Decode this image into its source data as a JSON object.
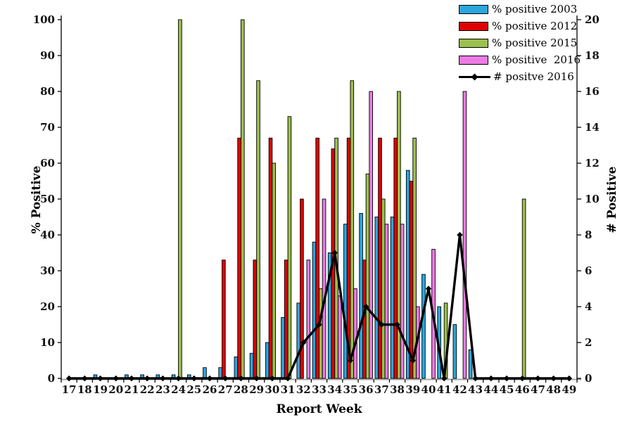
{
  "chart_data": {
    "type": "bar+line",
    "grid": false,
    "legend_position": "top-right",
    "x_axis": {
      "label": "Report Week",
      "categories": [
        17,
        18,
        19,
        20,
        21,
        22,
        23,
        24,
        25,
        26,
        27,
        28,
        29,
        30,
        31,
        32,
        33,
        34,
        35,
        36,
        37,
        38,
        39,
        40,
        41,
        42,
        43,
        44,
        45,
        46,
        47,
        48,
        49
      ]
    },
    "y_left_axis": {
      "label": "% Positive",
      "min": 0,
      "max": 100,
      "step": 10
    },
    "y_right_axis": {
      "label": "# Positive",
      "min": 0,
      "max": 20,
      "step": 2
    },
    "series": [
      {
        "name": "% positive 2003",
        "type": "bar",
        "axis": "left",
        "color": "#2BA6DE",
        "values": [
          0,
          0,
          1,
          0,
          1,
          1,
          1,
          1,
          1,
          3,
          3,
          6,
          7,
          10,
          17,
          21,
          38,
          35,
          43,
          46,
          45,
          45,
          58,
          29,
          20,
          15,
          8,
          0,
          0,
          0,
          0,
          0,
          0
        ]
      },
      {
        "name": "% positive 2012",
        "type": "bar",
        "axis": "left",
        "color": "#E00000",
        "values": [
          0,
          0,
          0,
          0,
          0,
          0,
          0,
          0,
          0,
          0,
          33,
          67,
          33,
          67,
          33,
          50,
          67,
          64,
          67,
          33,
          67,
          67,
          55,
          0,
          0,
          0,
          0,
          0,
          0,
          0,
          0,
          0,
          0
        ]
      },
      {
        "name": "% positive 2015",
        "type": "bar",
        "axis": "left",
        "color": "#9CC04D",
        "values": [
          0,
          0,
          0,
          0,
          0,
          0,
          0,
          100,
          0,
          0,
          0,
          100,
          83,
          60,
          73,
          0,
          25,
          67,
          83,
          57,
          50,
          80,
          67,
          0,
          21,
          0,
          0,
          0,
          0,
          50,
          0,
          0,
          0
        ]
      },
      {
        "name": "% positive  2016",
        "type": "bar",
        "axis": "left",
        "color": "#EE7BE4",
        "values": [
          0,
          0,
          0,
          0,
          0,
          0,
          0,
          0,
          0,
          0,
          0,
          0,
          0,
          0,
          0,
          33,
          50,
          23,
          25,
          80,
          43,
          43,
          20,
          36,
          0,
          80,
          0,
          0,
          0,
          0,
          0,
          0,
          0
        ]
      },
      {
        "name": "# positve 2016",
        "type": "line",
        "axis": "right",
        "color": "#000000",
        "values": [
          0,
          0,
          0,
          0,
          0,
          0,
          0,
          0,
          0,
          0,
          0,
          0,
          0,
          0,
          0,
          2,
          3,
          7,
          1,
          4,
          3,
          3,
          1,
          5,
          0,
          8,
          0,
          0,
          0,
          0,
          0,
          0,
          0
        ]
      }
    ]
  }
}
